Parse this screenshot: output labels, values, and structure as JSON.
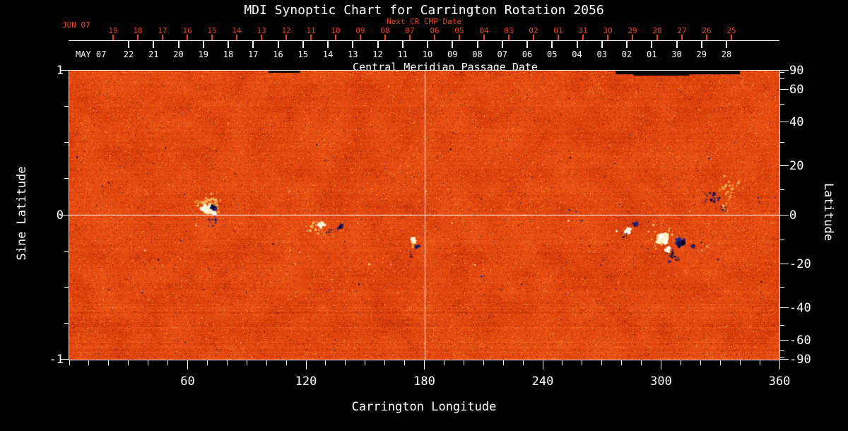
{
  "title": "MDI Synoptic Chart for Carrington Rotation 2056",
  "colors": {
    "background": "#000000",
    "text_white": "#ffffff",
    "text_red": "#ee4014",
    "map_base_orange": "#e5470e",
    "positive_flux_white": "#ffffff",
    "negative_flux_navy": "#10104a",
    "enhanced_network_yellow": "#f6cf70"
  },
  "top_axis": {
    "next_cr_label": "Next CR CMP Date",
    "next_cr_month": "JUN 07",
    "next_cr_dates": [
      "19",
      "18",
      "17",
      "16",
      "15",
      "14",
      "13",
      "12",
      "11",
      "10",
      "09",
      "08",
      "07",
      "06",
      "05",
      "04",
      "03",
      "02",
      "01",
      "31",
      "30",
      "29",
      "28",
      "27",
      "26",
      "25"
    ],
    "cmp_month": "MAY 07",
    "cmp_dates": [
      "22",
      "21",
      "20",
      "19",
      "18",
      "17",
      "16",
      "15",
      "14",
      "13",
      "12",
      "11",
      "10",
      "09",
      "08",
      "07",
      "06",
      "05",
      "04",
      "03",
      "02",
      "01",
      "30",
      "29",
      "28"
    ],
    "cmp_axis_label": "Central Meridian Passage Date"
  },
  "left_axis": {
    "label": "Sine Latitude",
    "tick_labels": [
      "1",
      "0",
      "-1"
    ],
    "tick_values": [
      1,
      0,
      -1
    ],
    "minor_tick_values": [
      0.75,
      0.5,
      0.25,
      -0.25,
      -0.5,
      -0.75
    ]
  },
  "right_axis": {
    "label": "Latitude",
    "tick_labels": [
      "90",
      "60",
      "40",
      "20",
      "0",
      "-20",
      "-40",
      "-60",
      "-90"
    ],
    "tick_values": [
      90,
      60,
      40,
      20,
      0,
      -20,
      -40,
      -60,
      -90
    ],
    "minor_tick_values": [
      80,
      70,
      50,
      30,
      10,
      -10,
      -30,
      -50,
      -70,
      -80
    ]
  },
  "bottom_axis": {
    "label": "Carrington Longitude",
    "tick_labels": [
      "60",
      "120",
      "180",
      "240",
      "300",
      "360"
    ],
    "tick_values": [
      60,
      120,
      180,
      240,
      300,
      360
    ],
    "minor_tick_step": 10
  },
  "chart_data": {
    "type": "heatmap",
    "title": "MDI Synoptic Chart for Carrington Rotation 2056",
    "xlabel": "Carrington Longitude",
    "ylabel_left": "Sine Latitude",
    "ylabel_right": "Latitude",
    "xlim": [
      0,
      360
    ],
    "ylim_sine_latitude": [
      -1,
      1
    ],
    "ylim_latitude": [
      -90,
      90
    ],
    "x_major_ticks": [
      60,
      120,
      180,
      240,
      300,
      360
    ],
    "x_minor_tick_step": 10,
    "y_projection": "sine-latitude",
    "grid": "off",
    "reference_lines": {
      "longitude": 180,
      "latitude": 0
    },
    "colormap_meaning": {
      "orange_background": "quiet-Sun photospheric magnetic field",
      "white_yellow": "positive magnetic polarity (active regions)",
      "dark_blue_black": "negative magnetic polarity (active regions)"
    },
    "active_regions": [
      {
        "carrington_longitude": 72,
        "latitude": 2,
        "size": "medium",
        "note": "bipolar active region straddling the equator line"
      },
      {
        "carrington_longitude": 129,
        "latitude": -5,
        "size": "small",
        "note": "bipolar pair, white leading / navy following"
      },
      {
        "carrington_longitude": 175,
        "latitude": -11,
        "size": "small",
        "note": "compact bipole just left of the 180-degree meridian line"
      },
      {
        "carrington_longitude": 284,
        "latitude": -5,
        "size": "small",
        "note": "bipolar pair"
      },
      {
        "carrington_longitude": 303,
        "latitude": -10,
        "size": "large",
        "note": "dominant bipolar complex, bright white with large navy patch"
      },
      {
        "carrington_longitude": 333,
        "latitude": 11,
        "size": "medium",
        "note": "diffuse decayed region of blue specks and yellow network"
      }
    ],
    "data_gaps": [
      {
        "location": "north edge",
        "longitude_range": [
          101,
          117
        ]
      },
      {
        "location": "north edge",
        "longitude_range": [
          277,
          340
        ]
      }
    ]
  }
}
